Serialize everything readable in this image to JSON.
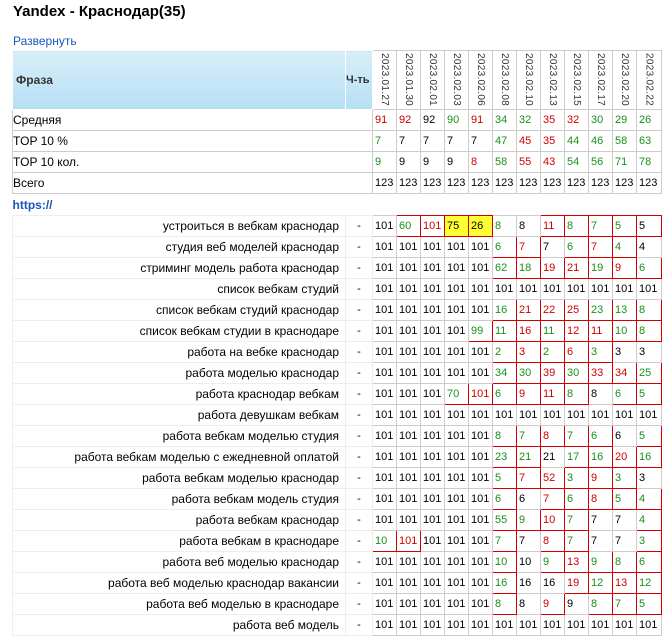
{
  "page": {
    "title": "Yandex - Краснодар(35)",
    "expand_label": "Развернуть",
    "col_phrase": "Фраза",
    "col_freq": "Ч-ть",
    "url": "https://"
  },
  "dates": [
    "2023.01.27",
    "2023.01.30",
    "2023.02.01",
    "2023.02.03",
    "2023.02.06",
    "2023.02.08",
    "2023.02.10",
    "2023.02.13",
    "2023.02.15",
    "2023.02.17",
    "2023.02.20",
    "2023.02.22"
  ],
  "summary": [
    {
      "label": "Средняя",
      "values": [
        "91",
        "92",
        "92",
        "90",
        "91",
        "34",
        "32",
        "35",
        "32",
        "30",
        "29",
        "26"
      ],
      "colors": [
        "red",
        "red",
        "black",
        "green",
        "red",
        "green",
        "green",
        "red",
        "red",
        "green",
        "green",
        "green"
      ]
    },
    {
      "label": "TOP 10 %",
      "values": [
        "7",
        "7",
        "7",
        "7",
        "7",
        "47",
        "45",
        "35",
        "44",
        "46",
        "58",
        "63"
      ],
      "colors": [
        "green",
        "black",
        "black",
        "black",
        "black",
        "green",
        "red",
        "red",
        "green",
        "green",
        "green",
        "green"
      ]
    },
    {
      "label": "TOP 10 кол.",
      "values": [
        "9",
        "9",
        "9",
        "9",
        "8",
        "58",
        "55",
        "43",
        "54",
        "56",
        "71",
        "78"
      ],
      "colors": [
        "green",
        "black",
        "black",
        "black",
        "red",
        "green",
        "red",
        "red",
        "green",
        "green",
        "green",
        "green"
      ]
    },
    {
      "label": "Всего",
      "values": [
        "123",
        "123",
        "123",
        "123",
        "123",
        "123",
        "123",
        "123",
        "123",
        "123",
        "123",
        "123"
      ],
      "colors": [
        "black",
        "black",
        "black",
        "black",
        "black",
        "black",
        "black",
        "black",
        "black",
        "black",
        "black",
        "black"
      ]
    }
  ],
  "keywords": [
    {
      "phrase": "устроиться в вебкам краснодар",
      "freq": "-",
      "values": [
        "101",
        "60",
        "101",
        "75",
        "26",
        "8",
        "8",
        "11",
        "8",
        "7",
        "5",
        "5"
      ],
      "colors": [
        "black",
        "green",
        "red",
        "black",
        "black",
        "green",
        "black",
        "red",
        "green",
        "green",
        "green",
        "black"
      ],
      "hl": [
        0,
        1,
        1,
        1,
        1,
        0,
        0,
        1,
        1,
        1,
        1,
        1
      ],
      "yel": [
        0,
        0,
        0,
        1,
        1,
        0,
        0,
        0,
        0,
        0,
        0,
        0
      ]
    },
    {
      "phrase": "студия веб моделей краснодар",
      "freq": "-",
      "values": [
        "101",
        "101",
        "101",
        "101",
        "101",
        "6",
        "7",
        "7",
        "6",
        "7",
        "4",
        "4"
      ],
      "colors": [
        "black",
        "black",
        "black",
        "black",
        "black",
        "green",
        "red",
        "black",
        "green",
        "red",
        "green",
        "black"
      ],
      "hl": [
        0,
        0,
        0,
        0,
        0,
        1,
        1,
        0,
        1,
        1,
        1,
        0
      ],
      "yel": [
        0,
        0,
        0,
        0,
        0,
        0,
        0,
        0,
        0,
        0,
        0,
        0
      ]
    },
    {
      "phrase": "стриминг модель работа краснодар",
      "freq": "-",
      "values": [
        "101",
        "101",
        "101",
        "101",
        "101",
        "62",
        "18",
        "19",
        "21",
        "19",
        "9",
        "6"
      ],
      "colors": [
        "black",
        "black",
        "black",
        "black",
        "black",
        "green",
        "green",
        "red",
        "red",
        "green",
        "red",
        "green"
      ],
      "hl": [
        0,
        0,
        0,
        0,
        0,
        1,
        1,
        1,
        1,
        1,
        1,
        1
      ],
      "yel": [
        0,
        0,
        0,
        0,
        0,
        0,
        0,
        0,
        0,
        0,
        0,
        0
      ]
    },
    {
      "phrase": "список вебкам студий",
      "freq": "-",
      "values": [
        "101",
        "101",
        "101",
        "101",
        "101",
        "101",
        "101",
        "101",
        "101",
        "101",
        "101",
        "101"
      ],
      "colors": [
        "black",
        "black",
        "black",
        "black",
        "black",
        "black",
        "black",
        "black",
        "black",
        "black",
        "black",
        "black"
      ],
      "hl": [
        0,
        0,
        0,
        0,
        0,
        0,
        0,
        0,
        0,
        0,
        0,
        0
      ],
      "yel": [
        0,
        0,
        0,
        0,
        0,
        0,
        0,
        0,
        0,
        0,
        0,
        0
      ]
    },
    {
      "phrase": "список вебкам студий краснодар",
      "freq": "-",
      "values": [
        "101",
        "101",
        "101",
        "101",
        "101",
        "16",
        "21",
        "22",
        "25",
        "23",
        "13",
        "8"
      ],
      "colors": [
        "black",
        "black",
        "black",
        "black",
        "black",
        "green",
        "red",
        "red",
        "red",
        "green",
        "green",
        "green"
      ],
      "hl": [
        0,
        0,
        0,
        0,
        0,
        1,
        1,
        1,
        1,
        1,
        1,
        1
      ],
      "yel": [
        0,
        0,
        0,
        0,
        0,
        0,
        0,
        0,
        0,
        0,
        0,
        0
      ]
    },
    {
      "phrase": "список вебкам студии в краснодаре",
      "freq": "-",
      "values": [
        "101",
        "101",
        "101",
        "101",
        "99",
        "11",
        "16",
        "11",
        "12",
        "11",
        "10",
        "8"
      ],
      "colors": [
        "black",
        "black",
        "black",
        "black",
        "green",
        "green",
        "red",
        "green",
        "red",
        "red",
        "green",
        "green"
      ],
      "hl": [
        0,
        0,
        0,
        0,
        1,
        1,
        1,
        1,
        1,
        1,
        1,
        1
      ],
      "yel": [
        0,
        0,
        0,
        0,
        0,
        0,
        0,
        0,
        0,
        0,
        0,
        0
      ]
    },
    {
      "phrase": "работа на вебке краснодар",
      "freq": "-",
      "values": [
        "101",
        "101",
        "101",
        "101",
        "101",
        "2",
        "3",
        "2",
        "6",
        "3",
        "3",
        "3"
      ],
      "colors": [
        "black",
        "black",
        "black",
        "black",
        "black",
        "green",
        "red",
        "green",
        "red",
        "green",
        "black",
        "black"
      ],
      "hl": [
        0,
        0,
        0,
        0,
        0,
        1,
        1,
        1,
        1,
        1,
        0,
        0
      ],
      "yel": [
        0,
        0,
        0,
        0,
        0,
        0,
        0,
        0,
        0,
        0,
        0,
        0
      ]
    },
    {
      "phrase": "работа моделью краснодар",
      "freq": "-",
      "values": [
        "101",
        "101",
        "101",
        "101",
        "101",
        "34",
        "30",
        "39",
        "30",
        "33",
        "34",
        "25"
      ],
      "colors": [
        "black",
        "black",
        "black",
        "black",
        "black",
        "green",
        "green",
        "red",
        "green",
        "red",
        "red",
        "green"
      ],
      "hl": [
        0,
        0,
        0,
        0,
        0,
        1,
        1,
        1,
        1,
        1,
        1,
        1
      ],
      "yel": [
        0,
        0,
        0,
        0,
        0,
        0,
        0,
        0,
        0,
        0,
        0,
        0
      ]
    },
    {
      "phrase": "работа краснодар вебкам",
      "freq": "-",
      "values": [
        "101",
        "101",
        "101",
        "70",
        "101",
        "6",
        "9",
        "11",
        "8",
        "8",
        "6",
        "5"
      ],
      "colors": [
        "black",
        "black",
        "black",
        "green",
        "red",
        "green",
        "red",
        "red",
        "green",
        "black",
        "green",
        "green"
      ],
      "hl": [
        0,
        0,
        0,
        1,
        1,
        1,
        1,
        1,
        1,
        0,
        1,
        1
      ],
      "yel": [
        0,
        0,
        0,
        0,
        0,
        0,
        0,
        0,
        0,
        0,
        0,
        0
      ]
    },
    {
      "phrase": "работа девушкам вебкам",
      "freq": "-",
      "values": [
        "101",
        "101",
        "101",
        "101",
        "101",
        "101",
        "101",
        "101",
        "101",
        "101",
        "101",
        "101"
      ],
      "colors": [
        "black",
        "black",
        "black",
        "black",
        "black",
        "black",
        "black",
        "black",
        "black",
        "black",
        "black",
        "black"
      ],
      "hl": [
        0,
        0,
        0,
        0,
        0,
        0,
        0,
        0,
        0,
        0,
        0,
        0
      ],
      "yel": [
        0,
        0,
        0,
        0,
        0,
        0,
        0,
        0,
        0,
        0,
        0,
        0
      ]
    },
    {
      "phrase": "работа вебкам моделью студия",
      "freq": "-",
      "values": [
        "101",
        "101",
        "101",
        "101",
        "101",
        "8",
        "7",
        "8",
        "7",
        "6",
        "6",
        "5"
      ],
      "colors": [
        "black",
        "black",
        "black",
        "black",
        "black",
        "green",
        "green",
        "red",
        "green",
        "green",
        "black",
        "green"
      ],
      "hl": [
        0,
        0,
        0,
        0,
        0,
        1,
        1,
        1,
        1,
        1,
        0,
        1
      ],
      "yel": [
        0,
        0,
        0,
        0,
        0,
        0,
        0,
        0,
        0,
        0,
        0,
        0
      ]
    },
    {
      "phrase": "работа вебкам моделью с ежедневной оплатой",
      "freq": "-",
      "values": [
        "101",
        "101",
        "101",
        "101",
        "101",
        "23",
        "21",
        "21",
        "17",
        "16",
        "20",
        "16"
      ],
      "colors": [
        "black",
        "black",
        "black",
        "black",
        "black",
        "green",
        "green",
        "black",
        "green",
        "green",
        "red",
        "green"
      ],
      "hl": [
        0,
        0,
        0,
        0,
        0,
        1,
        1,
        0,
        1,
        1,
        1,
        1
      ],
      "yel": [
        0,
        0,
        0,
        0,
        0,
        0,
        0,
        0,
        0,
        0,
        0,
        0
      ]
    },
    {
      "phrase": "работа вебкам моделью краснодар",
      "freq": "-",
      "values": [
        "101",
        "101",
        "101",
        "101",
        "101",
        "5",
        "7",
        "52",
        "3",
        "9",
        "3",
        "3"
      ],
      "colors": [
        "black",
        "black",
        "black",
        "black",
        "black",
        "green",
        "red",
        "red",
        "green",
        "red",
        "green",
        "black"
      ],
      "hl": [
        0,
        0,
        0,
        0,
        0,
        1,
        1,
        1,
        1,
        1,
        1,
        0
      ],
      "yel": [
        0,
        0,
        0,
        0,
        0,
        0,
        0,
        0,
        0,
        0,
        0,
        0
      ]
    },
    {
      "phrase": "работа вебкам модель студия",
      "freq": "-",
      "values": [
        "101",
        "101",
        "101",
        "101",
        "101",
        "6",
        "6",
        "7",
        "6",
        "8",
        "5",
        "4"
      ],
      "colors": [
        "black",
        "black",
        "black",
        "black",
        "black",
        "green",
        "black",
        "red",
        "green",
        "red",
        "green",
        "green"
      ],
      "hl": [
        0,
        0,
        0,
        0,
        0,
        1,
        0,
        1,
        1,
        1,
        1,
        1
      ],
      "yel": [
        0,
        0,
        0,
        0,
        0,
        0,
        0,
        0,
        0,
        0,
        0,
        0
      ]
    },
    {
      "phrase": "работа вебкам краснодар",
      "freq": "-",
      "values": [
        "101",
        "101",
        "101",
        "101",
        "101",
        "55",
        "9",
        "10",
        "7",
        "7",
        "7",
        "4"
      ],
      "colors": [
        "black",
        "black",
        "black",
        "black",
        "black",
        "green",
        "green",
        "red",
        "green",
        "black",
        "black",
        "green"
      ],
      "hl": [
        0,
        0,
        0,
        0,
        0,
        1,
        1,
        1,
        1,
        0,
        0,
        1
      ],
      "yel": [
        0,
        0,
        0,
        0,
        0,
        0,
        0,
        0,
        0,
        0,
        0,
        0
      ]
    },
    {
      "phrase": "работа вебкам в краснодаре",
      "freq": "-",
      "values": [
        "10",
        "101",
        "101",
        "101",
        "101",
        "7",
        "7",
        "8",
        "7",
        "7",
        "7",
        "3"
      ],
      "colors": [
        "green",
        "red",
        "black",
        "black",
        "black",
        "green",
        "black",
        "red",
        "green",
        "black",
        "black",
        "green"
      ],
      "hl": [
        1,
        1,
        0,
        0,
        0,
        1,
        0,
        1,
        1,
        0,
        0,
        1
      ],
      "yel": [
        0,
        0,
        0,
        0,
        0,
        0,
        0,
        0,
        0,
        0,
        0,
        0
      ]
    },
    {
      "phrase": "работа веб моделью краснодар",
      "freq": "-",
      "values": [
        "101",
        "101",
        "101",
        "101",
        "101",
        "10",
        "10",
        "9",
        "13",
        "9",
        "8",
        "6"
      ],
      "colors": [
        "black",
        "black",
        "black",
        "black",
        "black",
        "green",
        "black",
        "green",
        "red",
        "green",
        "green",
        "green"
      ],
      "hl": [
        0,
        0,
        0,
        0,
        0,
        1,
        0,
        1,
        1,
        1,
        1,
        1
      ],
      "yel": [
        0,
        0,
        0,
        0,
        0,
        0,
        0,
        0,
        0,
        0,
        0,
        0
      ]
    },
    {
      "phrase": "работа веб моделью краснодар вакансии",
      "freq": "-",
      "values": [
        "101",
        "101",
        "101",
        "101",
        "101",
        "16",
        "16",
        "16",
        "19",
        "12",
        "13",
        "12"
      ],
      "colors": [
        "black",
        "black",
        "black",
        "black",
        "black",
        "green",
        "black",
        "black",
        "red",
        "green",
        "red",
        "green"
      ],
      "hl": [
        0,
        0,
        0,
        0,
        0,
        1,
        0,
        0,
        1,
        1,
        1,
        1
      ],
      "yel": [
        0,
        0,
        0,
        0,
        0,
        0,
        0,
        0,
        0,
        0,
        0,
        0
      ]
    },
    {
      "phrase": "работа веб моделью в краснодаре",
      "freq": "-",
      "values": [
        "101",
        "101",
        "101",
        "101",
        "101",
        "8",
        "8",
        "9",
        "9",
        "8",
        "7",
        "5"
      ],
      "colors": [
        "black",
        "black",
        "black",
        "black",
        "black",
        "green",
        "black",
        "red",
        "black",
        "green",
        "green",
        "green"
      ],
      "hl": [
        0,
        0,
        0,
        0,
        0,
        1,
        0,
        1,
        0,
        1,
        1,
        1
      ],
      "yel": [
        0,
        0,
        0,
        0,
        0,
        0,
        0,
        0,
        0,
        0,
        0,
        0
      ]
    },
    {
      "phrase": "работа веб модель",
      "freq": "-",
      "values": [
        "101",
        "101",
        "101",
        "101",
        "101",
        "101",
        "101",
        "101",
        "101",
        "101",
        "101",
        "101"
      ],
      "colors": [
        "black",
        "black",
        "black",
        "black",
        "black",
        "black",
        "black",
        "black",
        "black",
        "black",
        "black",
        "black"
      ],
      "hl": [
        0,
        0,
        0,
        0,
        0,
        0,
        0,
        0,
        0,
        0,
        0,
        0
      ],
      "yel": [
        0,
        0,
        0,
        0,
        0,
        0,
        0,
        0,
        0,
        0,
        0,
        0
      ]
    }
  ]
}
